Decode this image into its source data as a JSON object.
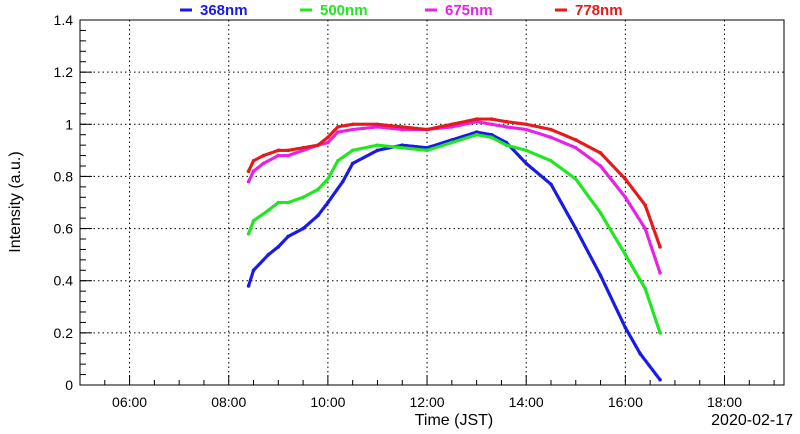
{
  "chart_data": {
    "type": "scatter",
    "xlabel": "Time (JST)",
    "ylabel": "Intensity (a.u.)",
    "date_label": "2020-02-17",
    "xlim": [
      5.0,
      19.2
    ],
    "ylim": [
      0,
      1.4
    ],
    "x_ticks": [
      {
        "value": 6,
        "label": "06:00"
      },
      {
        "value": 8,
        "label": "08:00"
      },
      {
        "value": 10,
        "label": "10:00"
      },
      {
        "value": 12,
        "label": "12:00"
      },
      {
        "value": 14,
        "label": "14:00"
      },
      {
        "value": 16,
        "label": "16:00"
      },
      {
        "value": 18,
        "label": "18:00"
      }
    ],
    "y_ticks": [
      {
        "value": 0,
        "label": "0"
      },
      {
        "value": 0.2,
        "label": "0.2"
      },
      {
        "value": 0.4,
        "label": "0.4"
      },
      {
        "value": 0.6,
        "label": "0.6"
      },
      {
        "value": 0.8,
        "label": "0.8"
      },
      {
        "value": 1.0,
        "label": "1"
      },
      {
        "value": 1.2,
        "label": "1.2"
      },
      {
        "value": 1.4,
        "label": "1.4"
      }
    ],
    "grid": true,
    "legend_position": "top",
    "series": [
      {
        "name": "368nm",
        "color": "#1a1ae6",
        "x": [
          8.4,
          8.5,
          8.8,
          9.0,
          9.2,
          9.5,
          9.8,
          10.0,
          10.3,
          10.5,
          11.0,
          11.5,
          12.0,
          12.5,
          13.0,
          13.3,
          13.6,
          14.0,
          14.5,
          15.0,
          15.5,
          16.0,
          16.3,
          16.7
        ],
        "y": [
          0.38,
          0.44,
          0.5,
          0.53,
          0.57,
          0.6,
          0.65,
          0.7,
          0.78,
          0.85,
          0.9,
          0.92,
          0.91,
          0.94,
          0.97,
          0.96,
          0.93,
          0.85,
          0.77,
          0.6,
          0.42,
          0.22,
          0.12,
          0.02
        ]
      },
      {
        "name": "500nm",
        "color": "#22e622",
        "x": [
          8.4,
          8.5,
          8.8,
          9.0,
          9.2,
          9.5,
          9.8,
          10.0,
          10.2,
          10.5,
          11.0,
          11.5,
          12.0,
          12.5,
          13.0,
          13.3,
          13.6,
          14.0,
          14.5,
          15.0,
          15.5,
          16.0,
          16.4,
          16.7
        ],
        "y": [
          0.58,
          0.63,
          0.67,
          0.7,
          0.7,
          0.72,
          0.75,
          0.79,
          0.86,
          0.9,
          0.92,
          0.91,
          0.9,
          0.93,
          0.96,
          0.95,
          0.92,
          0.9,
          0.86,
          0.79,
          0.66,
          0.5,
          0.37,
          0.2
        ]
      },
      {
        "name": "675nm",
        "color": "#e622e6",
        "x": [
          8.4,
          8.5,
          8.7,
          9.0,
          9.2,
          9.5,
          9.8,
          10.0,
          10.2,
          10.5,
          11.0,
          11.5,
          12.0,
          12.5,
          13.0,
          13.3,
          13.6,
          14.0,
          14.5,
          15.0,
          15.5,
          16.0,
          16.4,
          16.7
        ],
        "y": [
          0.78,
          0.82,
          0.85,
          0.88,
          0.88,
          0.9,
          0.92,
          0.93,
          0.97,
          0.98,
          0.99,
          0.98,
          0.98,
          0.99,
          1.01,
          1.0,
          0.99,
          0.98,
          0.95,
          0.91,
          0.84,
          0.72,
          0.6,
          0.43
        ]
      },
      {
        "name": "778nm",
        "color": "#e61a1a",
        "x": [
          8.4,
          8.5,
          8.7,
          9.0,
          9.2,
          9.5,
          9.8,
          10.0,
          10.2,
          10.5,
          11.0,
          11.5,
          12.0,
          12.5,
          13.0,
          13.3,
          13.6,
          14.0,
          14.5,
          15.0,
          15.5,
          16.0,
          16.4,
          16.7
        ],
        "y": [
          0.82,
          0.86,
          0.88,
          0.9,
          0.9,
          0.91,
          0.92,
          0.95,
          0.99,
          1.0,
          1.0,
          0.99,
          0.98,
          1.0,
          1.02,
          1.02,
          1.01,
          1.0,
          0.98,
          0.94,
          0.89,
          0.79,
          0.69,
          0.53
        ]
      }
    ]
  }
}
